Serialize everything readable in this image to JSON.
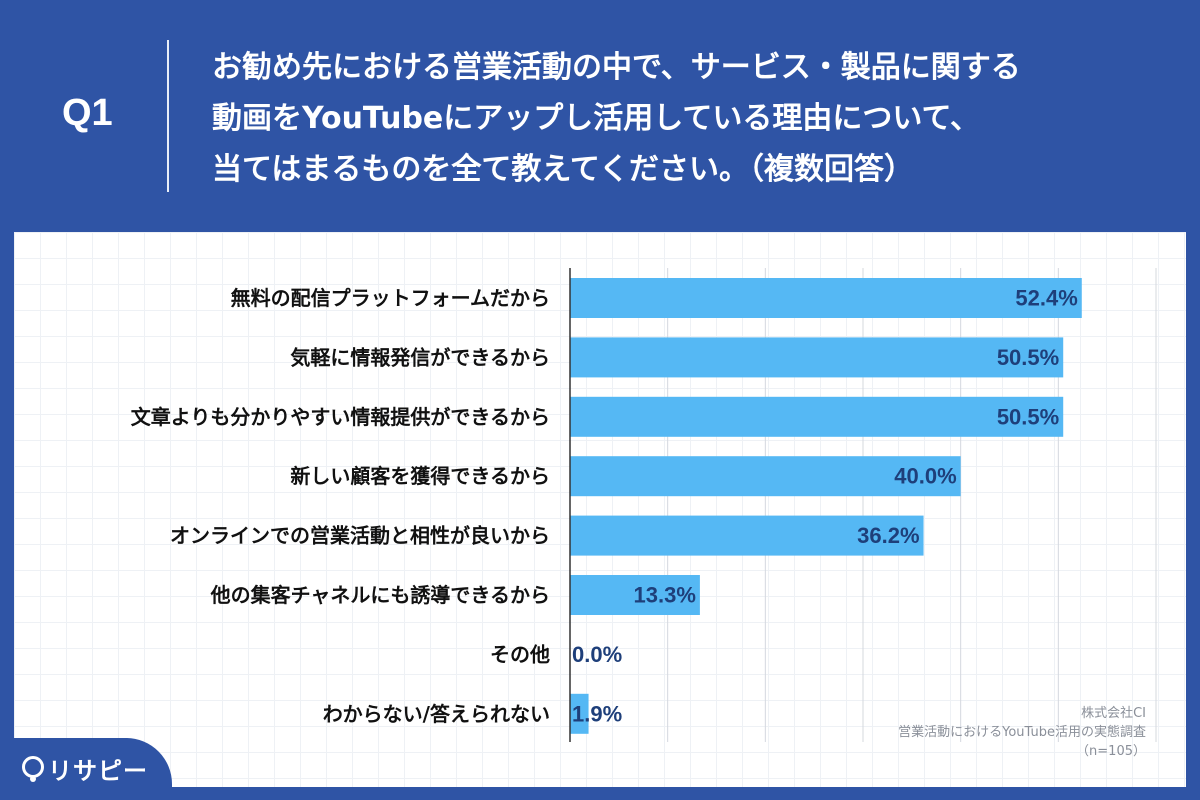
{
  "header": {
    "question_label": "Q1",
    "question_text": "お勧め先における営業活動の中で、サービス・製品に関する\n動画をYouTubeにアップし活用している理由について、\n当てはまるものを全て教えてください。（複数回答）"
  },
  "source": {
    "company": "株式会社CI",
    "survey": "営業活動におけるYouTube活用の実態調査",
    "n": "（n=105）"
  },
  "brand": {
    "name": "リサピー"
  },
  "colors": {
    "background": "#2f54a5",
    "bar": "#55b8f4",
    "value_text": "#1e3f7a"
  },
  "chart_data": {
    "type": "bar",
    "orientation": "horizontal",
    "categories": [
      "無料の配信プラットフォームだから",
      "気軽に情報発信ができるから",
      "文章よりも分かりやすい情報提供ができるから",
      "新しい顧客を獲得できるから",
      "オンラインでの営業活動と相性が良いから",
      "他の集客チャネルにも誘導できるから",
      "その他",
      "わからない/答えられない"
    ],
    "values": [
      52.4,
      50.5,
      50.5,
      40.0,
      36.2,
      13.3,
      0.0,
      1.9
    ],
    "value_labels": [
      "52.4%",
      "50.5%",
      "50.5%",
      "40.0%",
      "36.2%",
      "13.3%",
      "0.0%",
      "1.9%"
    ],
    "xlim": [
      0,
      60
    ],
    "grid": true,
    "title": "",
    "xlabel": "",
    "ylabel": ""
  }
}
